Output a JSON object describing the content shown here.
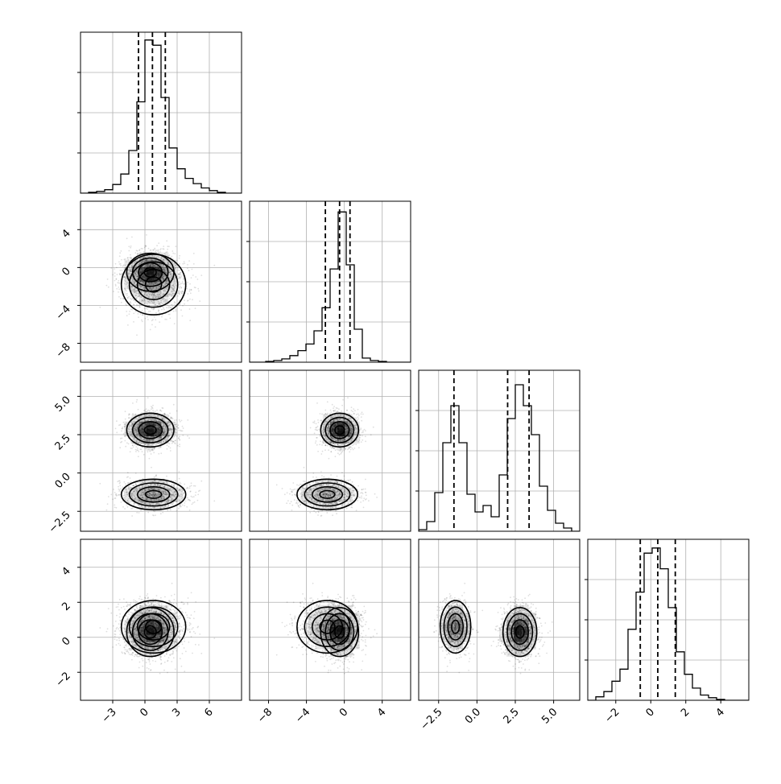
{
  "chart_data": {
    "type": "corner",
    "n_params": 4,
    "grid": true,
    "colors": {
      "line": "#000000",
      "grid": "#b0b0b0",
      "density": "#000000",
      "background": "#ffffff"
    },
    "params": [
      {
        "range": [
          -6,
          9
        ],
        "ticks": [
          -3,
          0,
          3,
          6
        ],
        "tick_labels": [
          "−3",
          "0",
          "3",
          "6"
        ],
        "quantiles": [
          -0.6,
          0.7,
          1.9
        ],
        "hist": {
          "edges": [
            -6,
            -5.25,
            -4.5,
            -3.75,
            -3,
            -2.25,
            -1.5,
            -0.75,
            0,
            0.75,
            1.5,
            2.25,
            3,
            3.75,
            4.5,
            5.25,
            6,
            6.75,
            7.5,
            8.25,
            9
          ],
          "counts": [
            0,
            1,
            2,
            4,
            10,
            22,
            49,
            105,
            176,
            170,
            110,
            52,
            28,
            17,
            11,
            6,
            3,
            1,
            0,
            0
          ],
          "ymax": 185
        }
      },
      {
        "range": [
          -10,
          7
        ],
        "ticks": [
          -8,
          -4,
          0,
          4
        ],
        "tick_labels": [
          "−8",
          "−4",
          "0",
          "4"
        ],
        "quantiles": [
          -2.0,
          -0.5,
          0.6
        ],
        "hist": {
          "edges": [
            -10,
            -9.15,
            -8.3,
            -7.45,
            -6.6,
            -5.75,
            -4.9,
            -4.05,
            -3.2,
            -2.35,
            -1.5,
            -0.65,
            0.2,
            1.05,
            1.9,
            2.75,
            3.6,
            4.45,
            5.3,
            6.15,
            7
          ],
          "counts": [
            0,
            0,
            1,
            2,
            4,
            8,
            14,
            22,
            38,
            66,
            113,
            182,
            118,
            40,
            5,
            2,
            1,
            0,
            0,
            0
          ],
          "ymax": 195
        }
      },
      {
        "range": [
          -3.8,
          6.7
        ],
        "ticks": [
          -2.5,
          0,
          2.5,
          5
        ],
        "tick_labels": [
          "−2.5",
          "0.0",
          "2.5",
          "5.0"
        ],
        "quantiles": [
          -1.5,
          2.0,
          3.4
        ],
        "hist": {
          "edges": [
            -3.8,
            -3.275,
            -2.75,
            -2.225,
            -1.7,
            -1.175,
            -0.65,
            -0.125,
            0.4,
            0.925,
            1.45,
            1.975,
            2.5,
            3.025,
            3.55,
            4.075,
            4.6,
            5.125,
            5.65,
            6.175,
            6.7
          ],
          "counts": [
            1,
            6,
            24,
            55,
            78,
            55,
            23,
            12,
            16,
            9,
            35,
            70,
            91,
            78,
            60,
            28,
            13,
            5,
            2,
            0
          ],
          "ymax": 100
        }
      },
      {
        "range": [
          -3.6,
          5.6
        ],
        "ticks": [
          -2,
          0,
          2,
          4
        ],
        "tick_labels": [
          "−2",
          "0",
          "2",
          "4"
        ],
        "quantiles": [
          -0.6,
          0.4,
          1.4
        ],
        "hist": {
          "edges": [
            -3.6,
            -3.14,
            -2.68,
            -2.22,
            -1.76,
            -1.3,
            -0.84,
            -0.38,
            0.08,
            0.54,
            1.0,
            1.46,
            1.92,
            2.38,
            2.84,
            3.3,
            3.76,
            4.22,
            4.68,
            5.14,
            5.6
          ],
          "counts": [
            0,
            4,
            10,
            22,
            36,
            82,
            125,
            170,
            176,
            152,
            107,
            56,
            30,
            14,
            6,
            3,
            1,
            0,
            0,
            0
          ],
          "ymax": 186
        }
      }
    ],
    "hist_ytick_fractions": [
      0.25,
      0.5,
      0.75
    ],
    "modes": [
      {
        "weight": 0.6,
        "mean": [
          0.5,
          -0.5,
          2.8,
          0.3
        ],
        "sd": [
          1.1,
          1.0,
          0.55,
          0.7
        ]
      },
      {
        "weight": 0.4,
        "mean": [
          0.8,
          -1.8,
          -1.4,
          0.6
        ],
        "sd": [
          1.5,
          1.6,
          0.5,
          0.75
        ]
      }
    ]
  }
}
